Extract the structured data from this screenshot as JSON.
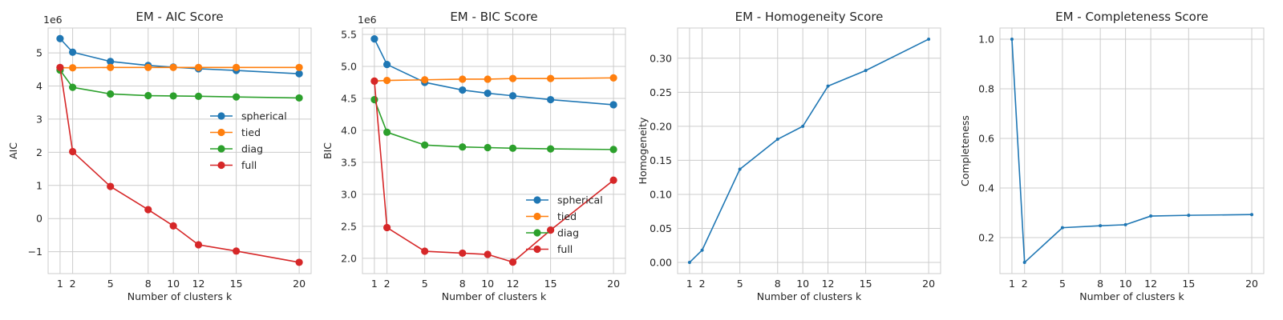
{
  "chart_data": [
    {
      "type": "line",
      "title": "EM - AIC Score",
      "xlabel": "Number of clusters k",
      "ylabel": "AIC",
      "y_offset_label": "1e6",
      "x": [
        1,
        2,
        5,
        8,
        10,
        12,
        15,
        20
      ],
      "x_ticks": [
        1,
        2,
        5,
        8,
        10,
        12,
        15,
        20
      ],
      "y_ticks": [
        -1,
        0,
        1,
        2,
        3,
        4,
        5
      ],
      "y_tick_labels": [
        "−1",
        "0",
        "1",
        "2",
        "3",
        "4",
        "5"
      ],
      "xlim": [
        0.05,
        20.95
      ],
      "ylim": [
        -1.66,
        5.75
      ],
      "grid": true,
      "legend": "right",
      "markers": true,
      "series": [
        {
          "name": "spherical",
          "color": "#1f77b4",
          "values": [
            5.43,
            5.02,
            4.74,
            4.62,
            4.57,
            4.52,
            4.47,
            4.37
          ]
        },
        {
          "name": "tied",
          "color": "#ff7f0e",
          "values": [
            4.55,
            4.55,
            4.56,
            4.56,
            4.56,
            4.56,
            4.56,
            4.56
          ]
        },
        {
          "name": "diag",
          "color": "#2ca02c",
          "values": [
            4.48,
            3.96,
            3.76,
            3.71,
            3.7,
            3.69,
            3.67,
            3.64
          ]
        },
        {
          "name": "full",
          "color": "#d62728",
          "values": [
            4.56,
            2.02,
            0.97,
            0.27,
            -0.22,
            -0.79,
            -0.98,
            -1.32
          ]
        }
      ]
    },
    {
      "type": "line",
      "title": "EM - BIC Score",
      "xlabel": "Number of clusters k",
      "ylabel": "BIC",
      "y_offset_label": "1e6",
      "x": [
        1,
        2,
        5,
        8,
        10,
        12,
        15,
        20
      ],
      "x_ticks": [
        1,
        2,
        5,
        8,
        10,
        12,
        15,
        20
      ],
      "y_ticks": [
        2.0,
        2.5,
        3.0,
        3.5,
        4.0,
        4.5,
        5.0,
        5.5
      ],
      "y_tick_labels": [
        "2.0",
        "2.5",
        "3.0",
        "3.5",
        "4.0",
        "4.5",
        "5.0",
        "5.5"
      ],
      "xlim": [
        0.05,
        20.95
      ],
      "ylim": [
        1.76,
        5.6
      ],
      "grid": true,
      "legend": "lower right",
      "markers": true,
      "series": [
        {
          "name": "spherical",
          "color": "#1f77b4",
          "values": [
            5.43,
            5.03,
            4.75,
            4.63,
            4.58,
            4.54,
            4.48,
            4.4
          ]
        },
        {
          "name": "tied",
          "color": "#ff7f0e",
          "values": [
            4.77,
            4.78,
            4.79,
            4.8,
            4.8,
            4.81,
            4.81,
            4.82
          ]
        },
        {
          "name": "diag",
          "color": "#2ca02c",
          "values": [
            4.48,
            3.97,
            3.77,
            3.74,
            3.73,
            3.72,
            3.71,
            3.7
          ]
        },
        {
          "name": "full",
          "color": "#d62728",
          "values": [
            4.77,
            2.48,
            2.11,
            2.08,
            2.06,
            1.94,
            2.44,
            3.22
          ]
        }
      ]
    },
    {
      "type": "line",
      "title": "EM - Homogeneity Score",
      "xlabel": "Number of clusters k",
      "ylabel": "Homogeneity",
      "x": [
        1,
        2,
        5,
        8,
        10,
        12,
        15,
        20
      ],
      "x_ticks": [
        1,
        2,
        5,
        8,
        10,
        12,
        15,
        20
      ],
      "y_ticks": [
        0.0,
        0.05,
        0.1,
        0.15,
        0.2,
        0.25,
        0.3
      ],
      "y_tick_labels": [
        "0.00",
        "0.05",
        "0.10",
        "0.15",
        "0.20",
        "0.25",
        "0.30"
      ],
      "xlim": [
        0.05,
        20.95
      ],
      "ylim": [
        -0.0164,
        0.3444
      ],
      "grid": true,
      "markers": true,
      "series": [
        {
          "color": "#1f77b4",
          "values": [
            0.0,
            0.018,
            0.137,
            0.181,
            0.2,
            0.259,
            0.282,
            0.328
          ]
        }
      ]
    },
    {
      "type": "line",
      "title": "EM - Completeness Score",
      "xlabel": "Number of clusters k",
      "ylabel": "Completeness",
      "x": [
        1,
        2,
        5,
        8,
        10,
        12,
        15,
        20
      ],
      "x_ticks": [
        1,
        2,
        5,
        8,
        10,
        12,
        15,
        20
      ],
      "y_ticks": [
        0.2,
        0.4,
        0.6,
        0.8,
        1.0
      ],
      "y_tick_labels": [
        "0.2",
        "0.4",
        "0.6",
        "0.8",
        "1.0"
      ],
      "xlim": [
        0.05,
        20.95
      ],
      "ylim": [
        0.055,
        1.045
      ],
      "grid": true,
      "markers": true,
      "series": [
        {
          "color": "#1f77b4",
          "values": [
            1.0,
            0.1,
            0.24,
            0.248,
            0.252,
            0.287,
            0.29,
            0.293
          ]
        }
      ]
    }
  ]
}
